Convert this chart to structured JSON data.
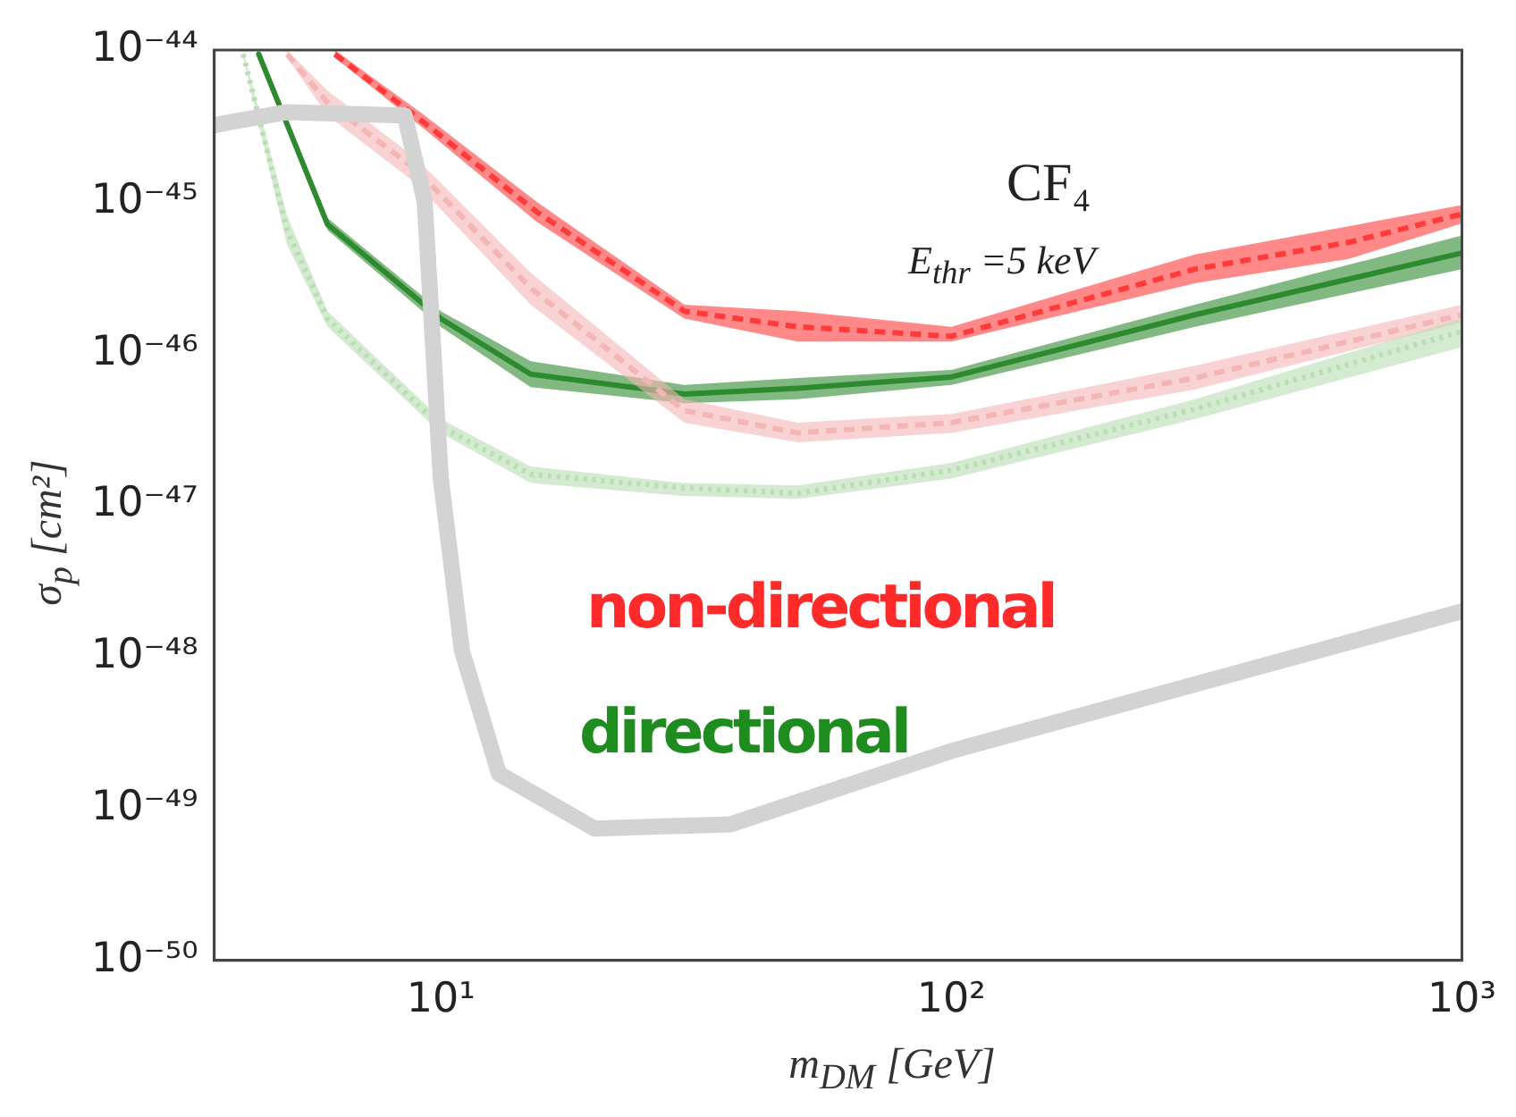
{
  "chart_data": {
    "type": "line",
    "xlabel": "m$_{DM}$ [GeV]",
    "ylabel": "σ$_{p}$ [cm²]",
    "log": "xy",
    "grid": false,
    "legend": false,
    "marker": "none",
    "xlim": [
      3.6,
      1000
    ],
    "ylim": [
      1e-50,
      1e-44
    ],
    "xticks": [
      {
        "value": 10,
        "label": "10¹"
      },
      {
        "value": 100,
        "label": "10²"
      },
      {
        "value": 1000,
        "label": "10³"
      }
    ],
    "yticks": [
      {
        "value": 1e-50,
        "label": "10⁻⁵⁰"
      },
      {
        "value": 1e-49,
        "label": "10⁻⁴⁹"
      },
      {
        "value": 1e-48,
        "label": "10⁻⁴⁸"
      },
      {
        "value": 1e-47,
        "label": "10⁻⁴⁷"
      },
      {
        "value": 1e-46,
        "label": "10⁻⁴⁶"
      },
      {
        "value": 1e-45,
        "label": "10⁻⁴⁵"
      },
      {
        "value": 1e-44,
        "label": "10⁻⁴⁴"
      }
    ],
    "annotations": [
      "CF₄",
      "E$_{thr}$ =5 keV",
      "non-directional",
      "directional"
    ],
    "series": [
      {
        "color": "#d3d3d3",
        "line_style": "solid",
        "x": [
          3.6,
          5,
          8.5,
          9.3,
          10,
          11,
          13,
          20,
          37,
          100,
          1000
        ],
        "values": [
          3.2e-45,
          3.9e-45,
          3.7e-45,
          1e-45,
          1.5e-47,
          1.1e-48,
          1.7e-49,
          7.4e-50,
          7.9e-50,
          2.4e-49,
          2e-48
        ]
      },
      {
        "color": "#b8deb2",
        "line_style": "dotted",
        "x": [
          4.1,
          5,
          6,
          10,
          15,
          30,
          50,
          100,
          300,
          1000
        ],
        "values": [
          9.4e-45,
          6.5e-46,
          1.7e-46,
          3.3e-47,
          1.6e-47,
          1.3e-47,
          1.2e-47,
          1.7e-47,
          4.3e-47,
          1.4e-46
        ],
        "lower": [
          8.9e-45,
          5.2e-46,
          1.5e-46,
          3e-47,
          1.4e-47,
          1.15e-47,
          1.1e-47,
          1.5e-47,
          3.7e-47,
          1.1e-46
        ],
        "upper": [
          1e-44,
          8.1e-46,
          1.9e-46,
          3.7e-47,
          1.8e-47,
          1.4e-47,
          1.35e-47,
          1.9e-47,
          5e-47,
          1.7e-46
        ]
      },
      {
        "color": "#f5b5b5",
        "line_style": "dashed",
        "x": [
          5,
          6,
          9,
          15,
          30,
          50,
          100,
          300,
          1000
        ],
        "values": [
          9.4e-45,
          4.5e-45,
          1.6e-45,
          2.7e-46,
          4.2e-47,
          3e-47,
          3.5e-47,
          6.9e-47,
          1.8e-46
        ],
        "lower": [
          8.9e-45,
          3.7e-45,
          1.3e-45,
          2.1e-46,
          3.5e-47,
          2.6e-47,
          3e-47,
          5.8e-47,
          1.6e-46
        ],
        "upper": [
          1e-44,
          5.4e-45,
          1.9e-45,
          3.4e-46,
          5e-47,
          3.5e-47,
          4e-47,
          8.3e-47,
          2.1e-46
        ]
      },
      {
        "color": "#2f8a2f",
        "line_style": "solid",
        "x": [
          4.4,
          6,
          10,
          15,
          30,
          50,
          100,
          300,
          1000
        ],
        "values": [
          9.4e-45,
          7.1e-46,
          1.7e-46,
          7.3e-47,
          5.4e-47,
          5.9e-47,
          7e-47,
          1.8e-46,
          4.6e-46
        ],
        "lower": [
          8.9e-45,
          6.5e-46,
          1.5e-46,
          6e-47,
          4.7e-47,
          5e-47,
          6.2e-47,
          1.5e-46,
          3.6e-46
        ],
        "upper": [
          1e-44,
          7.8e-46,
          1.9e-46,
          8.9e-47,
          6.2e-47,
          6.9e-47,
          7.8e-47,
          2.1e-46,
          6e-46
        ]
      },
      {
        "color": "#ff3b3b",
        "line_style": "dashed",
        "x": [
          6.2,
          9.3,
          15.4,
          30,
          50,
          100,
          300,
          600,
          1000
        ],
        "values": [
          9.4e-45,
          3.3e-45,
          8.6e-46,
          1.9e-46,
          1.5e-46,
          1.3e-46,
          3.6e-46,
          5.4e-46,
          8.3e-46
        ],
        "lower": [
          8.9e-45,
          3e-45,
          7.4e-46,
          1.7e-46,
          1.2e-46,
          1.2e-46,
          2.9e-46,
          4.2e-46,
          7.2e-46
        ],
        "upper": [
          1e-44,
          3.7e-45,
          1e-45,
          2.1e-46,
          1.9e-46,
          1.5e-46,
          4.5e-46,
          6.9e-46,
          9.5e-46
        ]
      }
    ]
  }
}
